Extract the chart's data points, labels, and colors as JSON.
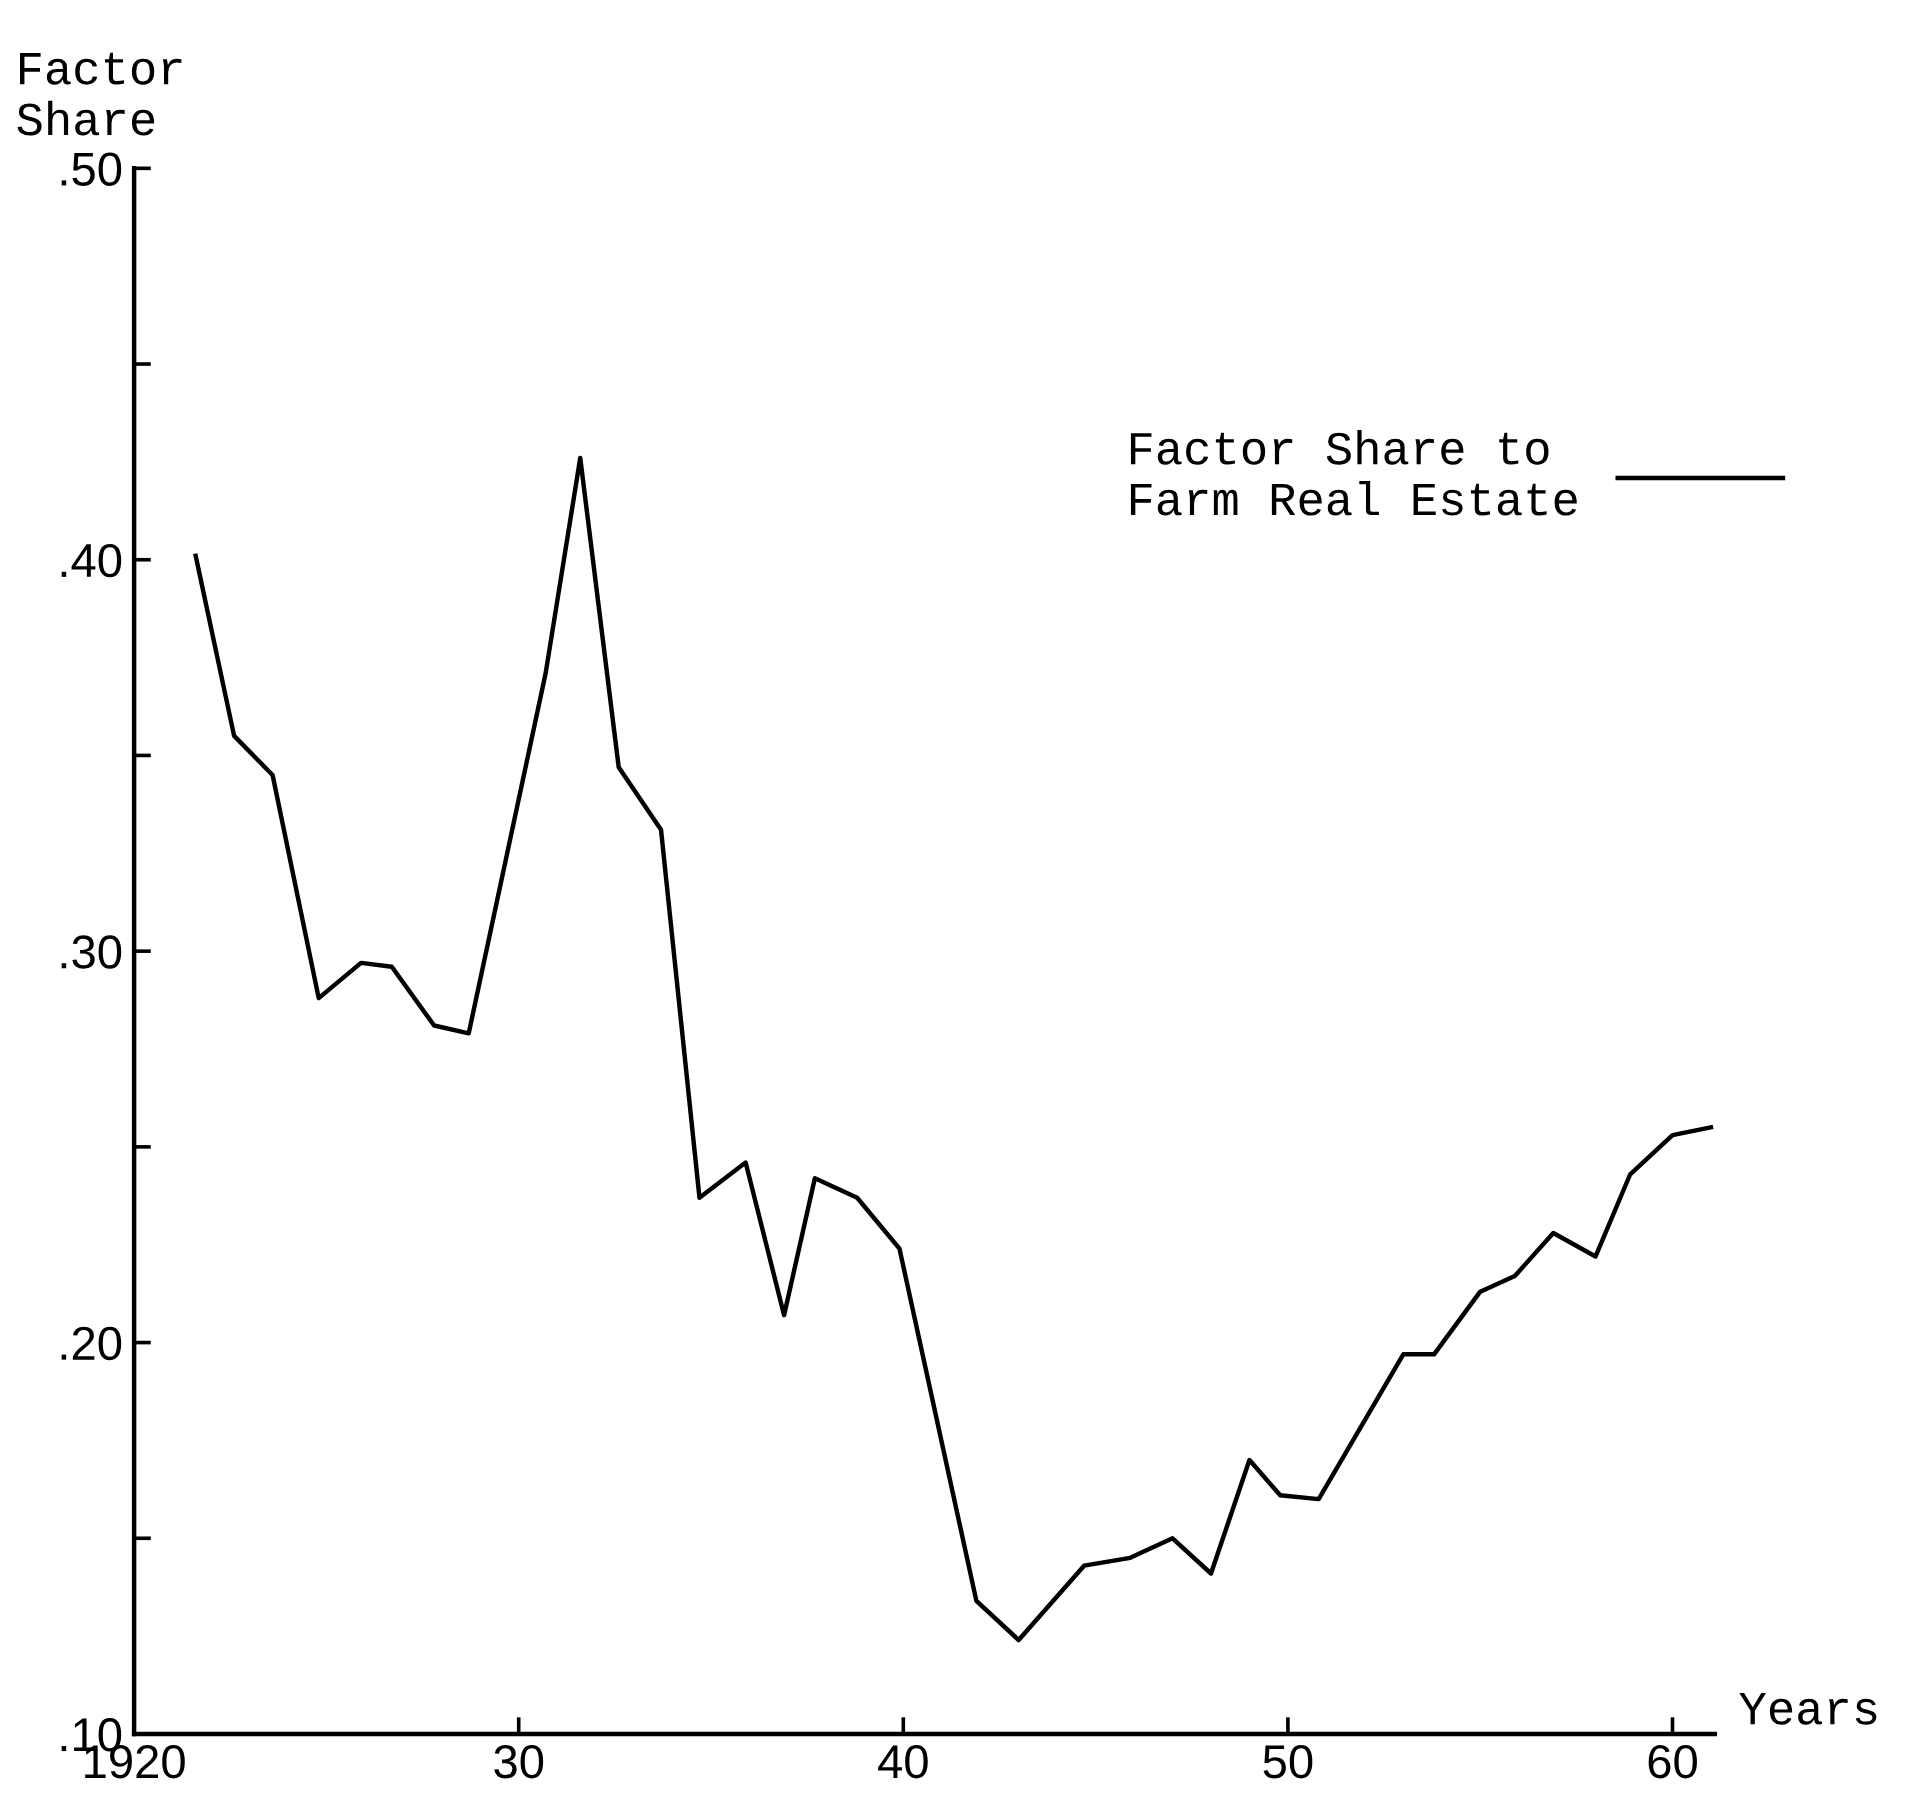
{
  "chart_data": {
    "type": "line",
    "xlabel": "Years",
    "ylabel": "Factor\nShare",
    "x": [
      1921.6,
      1922.6,
      1923.6,
      1924.8,
      1925.9,
      1926.7,
      1927.8,
      1928.7,
      1930.7,
      1931.6,
      1932.6,
      1933.7,
      1934.7,
      1935.9,
      1936.9,
      1937.7,
      1938.8,
      1939.9,
      1941.9,
      1943.0,
      1944.7,
      1945.9,
      1947.0,
      1948.0,
      1949.0,
      1949.8,
      1950.8,
      1953.0,
      1953.8,
      1955.0,
      1955.9,
      1956.9,
      1958.0,
      1958.9,
      1960.0,
      1961.0
    ],
    "series": [
      {
        "name": "Factor Share to\nFarm Real Estate",
        "color": "#000000",
        "values": [
          0.401,
          0.355,
          0.345,
          0.288,
          0.297,
          0.296,
          0.281,
          0.279,
          0.371,
          0.426,
          0.347,
          0.331,
          0.237,
          0.246,
          0.207,
          0.242,
          0.237,
          0.224,
          0.134,
          0.124,
          0.143,
          0.145,
          0.15,
          0.141,
          0.17,
          0.161,
          0.16,
          0.197,
          0.197,
          0.213,
          0.217,
          0.228,
          0.222,
          0.243,
          0.253,
          0.255
        ]
      }
    ],
    "xlim": [
      1920,
      1961.1
    ],
    "ylim": [
      0.1,
      0.5
    ],
    "xticks": [
      {
        "value": 1920,
        "label": "1920"
      },
      {
        "value": 1930,
        "label": "30"
      },
      {
        "value": 1940,
        "label": "40"
      },
      {
        "value": 1950,
        "label": "50"
      },
      {
        "value": 1960,
        "label": "60"
      }
    ],
    "yticks": [
      {
        "value": 0.1,
        "label": ".10"
      },
      {
        "value": 0.15,
        "label": null
      },
      {
        "value": 0.2,
        "label": ".20"
      },
      {
        "value": 0.25,
        "label": null
      },
      {
        "value": 0.3,
        "label": ".30"
      },
      {
        "value": 0.35,
        "label": null
      },
      {
        "value": 0.4,
        "label": ".40"
      },
      {
        "value": 0.45,
        "label": null
      },
      {
        "value": 0.5,
        "label": ".50"
      }
    ],
    "grid": false,
    "legend": "top right",
    "marker": "none",
    "line_style": "solid"
  }
}
